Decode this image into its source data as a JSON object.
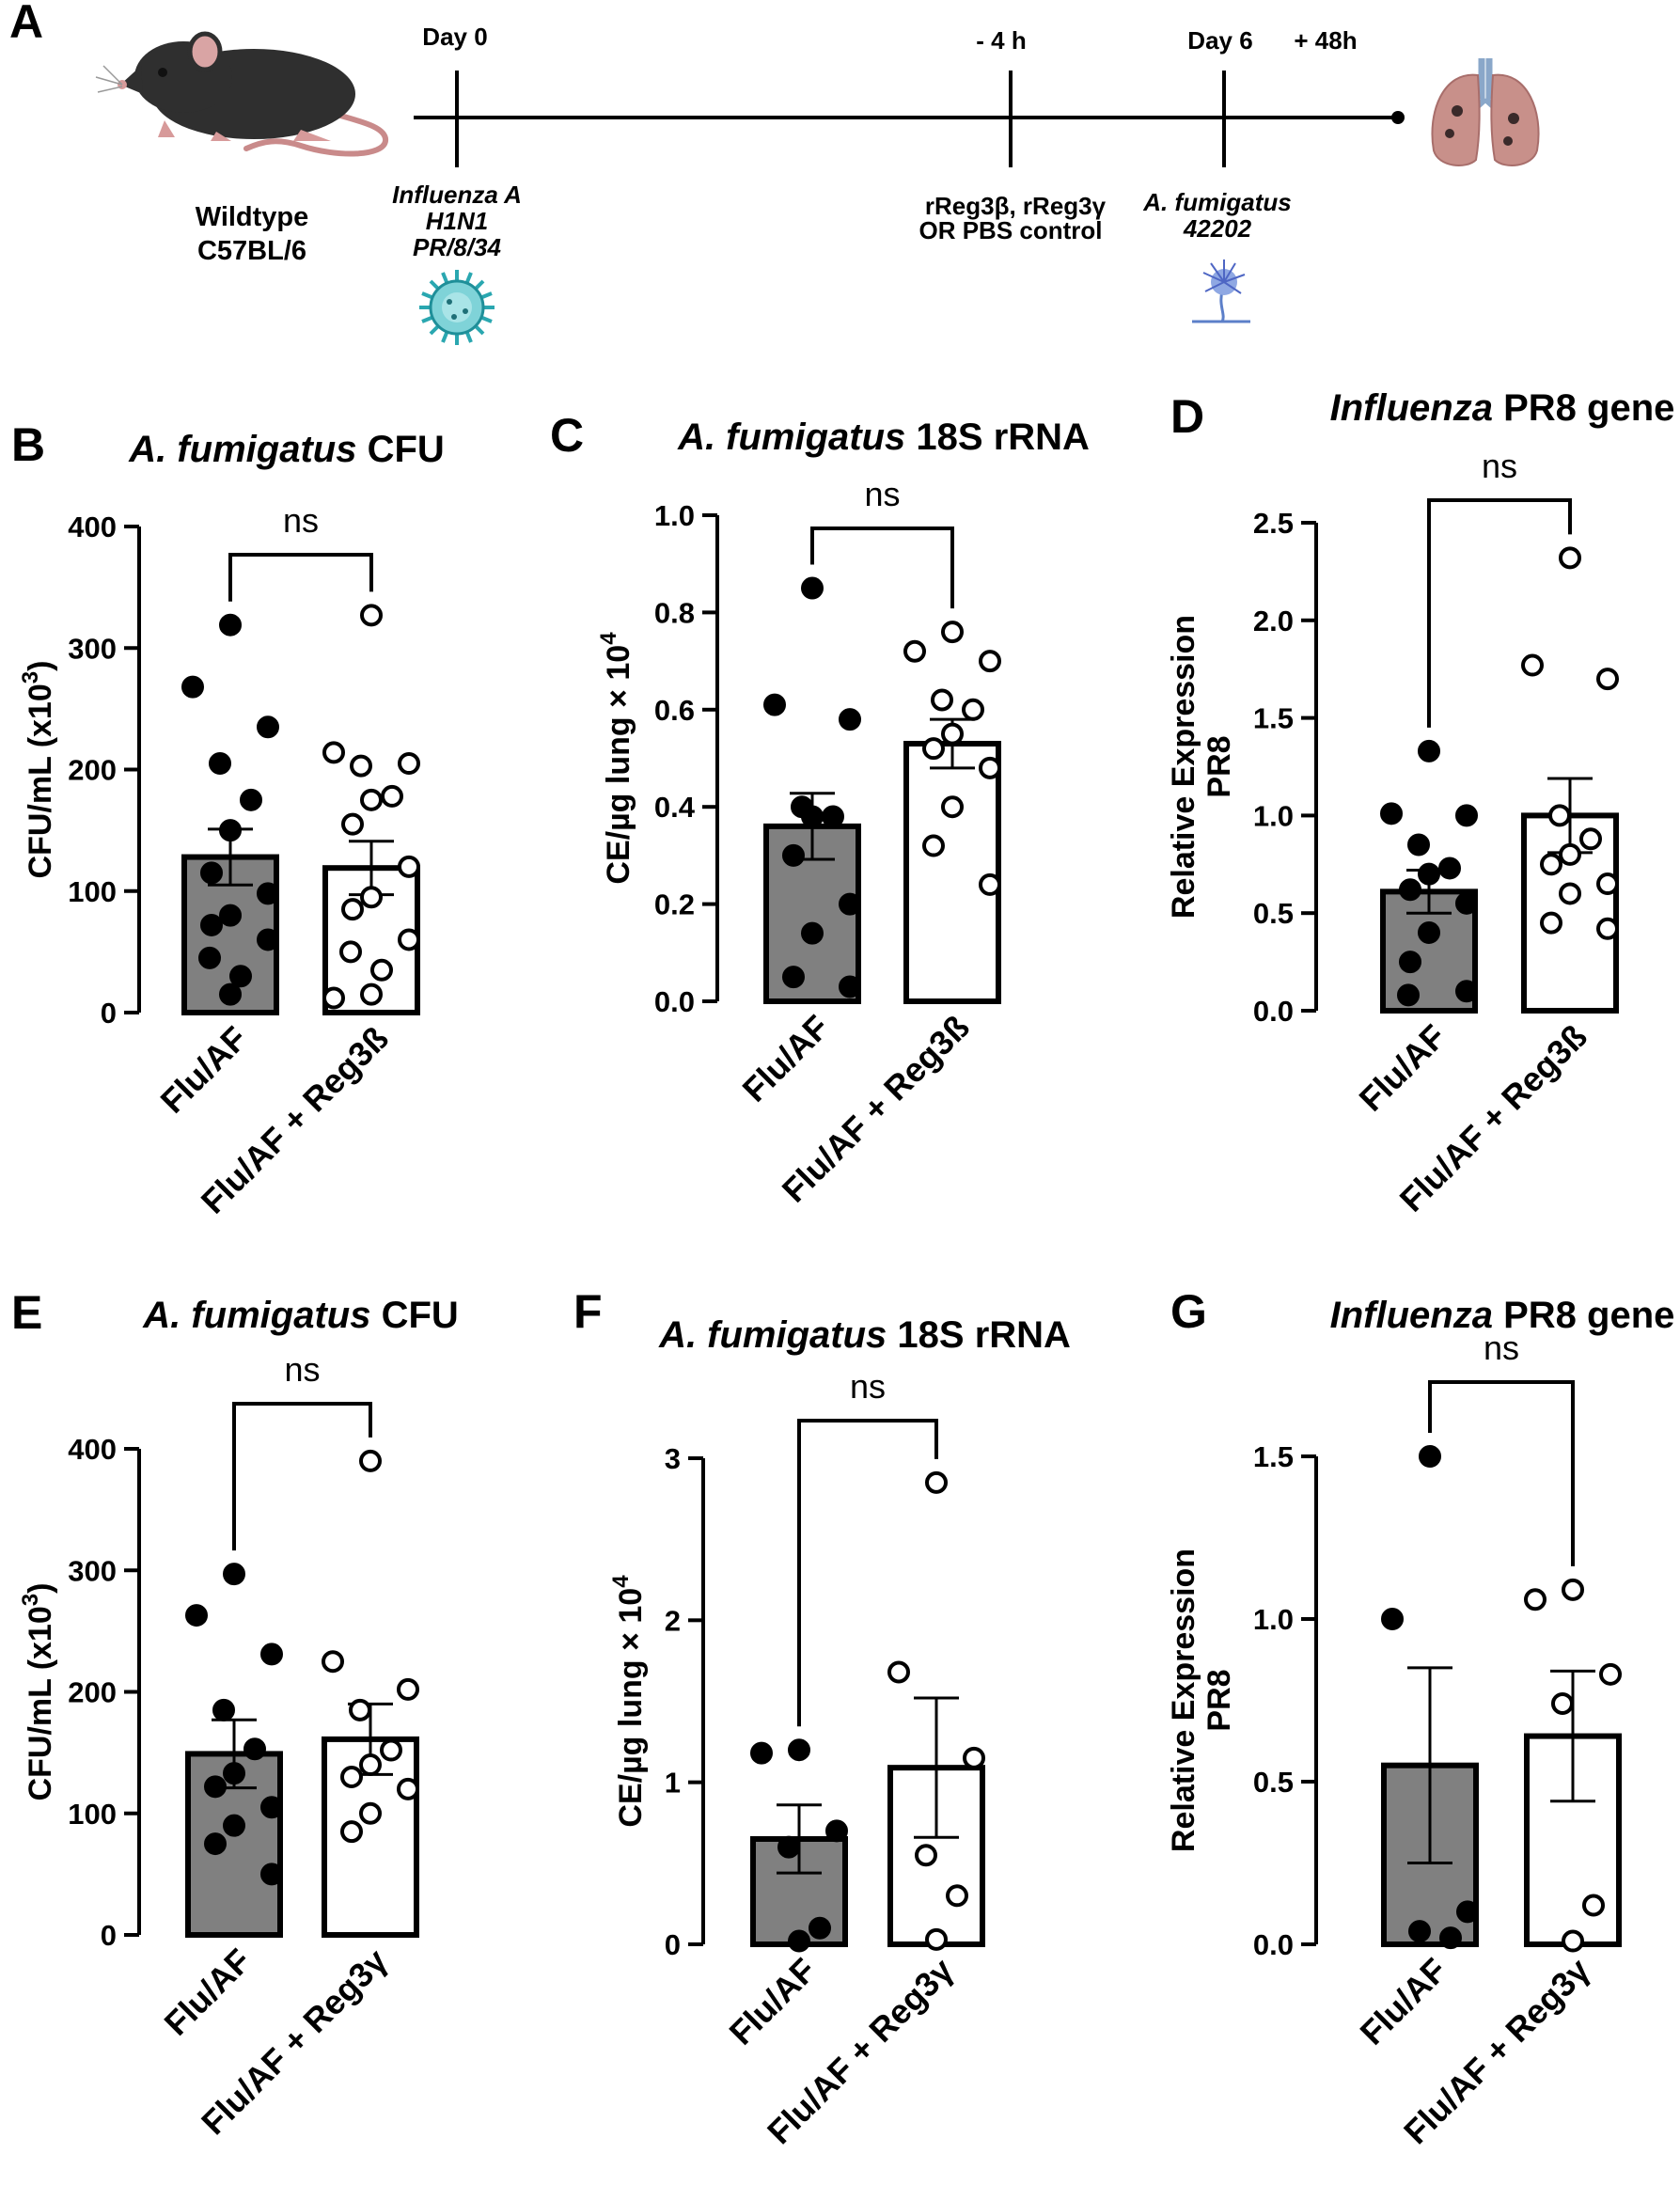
{
  "timeline": {
    "panel_label": "A",
    "strain_line1": "Wildtype",
    "strain_line2": "C57BL/6",
    "events": [
      {
        "label": "Day 0",
        "desc": [
          "Influenza A",
          "H1N1",
          "PR/8/34"
        ],
        "desc_style": "italic"
      },
      {
        "label": "- 4 h",
        "desc": [
          "rReg3β, rReg3γ",
          "OR PBS control"
        ],
        "desc_style": "normal"
      },
      {
        "label": "Day 6",
        "desc": [
          "A. fumigatus",
          "42202"
        ],
        "desc_style": "italic"
      },
      {
        "label": "+ 48h",
        "desc": [],
        "desc_style": "normal"
      }
    ]
  },
  "chart_data": [
    {
      "panel": "B",
      "type": "bar",
      "title": [
        {
          "t": "A. fumigatus",
          "i": true
        },
        {
          "t": " CFU",
          "i": false
        }
      ],
      "ylabel": [
        "CFU/mL (x10^3)"
      ],
      "sup": "3",
      "ylim": [
        0,
        400
      ],
      "ticks": [
        0,
        100,
        200,
        300,
        400
      ],
      "tick_labels": [
        "0",
        "100",
        "200",
        "300",
        "400"
      ],
      "categories": [
        "Flu/AF",
        "Flu/AF + Reg3ß"
      ],
      "means": [
        128,
        119
      ],
      "sem": [
        23,
        22
      ],
      "fills": [
        "#808080",
        "#ffffff"
      ],
      "points": [
        [
          319,
          268,
          235,
          205,
          175,
          150,
          115,
          98,
          80,
          72,
          60,
          45,
          30,
          15
        ],
        [
          327,
          214,
          205,
          203,
          178,
          175,
          155,
          120,
          95,
          85,
          60,
          50,
          35,
          15,
          12
        ]
      ],
      "significance": "ns"
    },
    {
      "panel": "C",
      "type": "bar",
      "title": [
        {
          "t": "A. fumigatus",
          "i": true
        },
        {
          "t": " 18S rRNA",
          "i": false
        }
      ],
      "ylabel": [
        "CE/µg lung × 10^4"
      ],
      "sup": "4",
      "ylim": [
        0,
        1.0
      ],
      "ticks": [
        0,
        0.2,
        0.4,
        0.6,
        0.8,
        1.0
      ],
      "tick_labels": [
        "0.0",
        "0.2",
        "0.4",
        "0.6",
        "0.8",
        "1.0"
      ],
      "categories": [
        "Flu/AF",
        "Flu/AF + Reg3ß"
      ],
      "means": [
        0.36,
        0.53
      ],
      "sem": [
        0.068,
        0.05
      ],
      "fills": [
        "#808080",
        "#ffffff"
      ],
      "points": [
        [
          0.85,
          0.61,
          0.58,
          0.4,
          0.38,
          0.38,
          0.3,
          0.2,
          0.14,
          0.05,
          0.03
        ],
        [
          0.76,
          0.72,
          0.7,
          0.62,
          0.6,
          0.55,
          0.52,
          0.48,
          0.4,
          0.32,
          0.24
        ]
      ],
      "significance": "ns"
    },
    {
      "panel": "D",
      "type": "bar",
      "title": [
        {
          "t": "Influenza",
          "i": true
        },
        {
          "t": " PR8 gene",
          "i": false
        }
      ],
      "ylabel": [
        "Relative Expression",
        "PR8"
      ],
      "sup": "",
      "ylim": [
        0,
        2.5
      ],
      "ticks": [
        0,
        0.5,
        1.0,
        1.5,
        2.0,
        2.5
      ],
      "tick_labels": [
        "0.0",
        "0.5",
        "1.0",
        "1.5",
        "2.0",
        "2.5"
      ],
      "categories": [
        "Flu/AF",
        "Flu/AF + Reg3ß"
      ],
      "means": [
        0.61,
        1.0
      ],
      "sem": [
        0.11,
        0.19
      ],
      "fills": [
        "#808080",
        "#ffffff"
      ],
      "points": [
        [
          1.33,
          1.01,
          1.0,
          0.85,
          0.73,
          0.7,
          0.62,
          0.55,
          0.4,
          0.25,
          0.1,
          0.08
        ],
        [
          2.32,
          1.77,
          1.7,
          1.0,
          0.88,
          0.8,
          0.75,
          0.65,
          0.6,
          0.45,
          0.42
        ]
      ],
      "significance": "ns"
    },
    {
      "panel": "E",
      "type": "bar",
      "title": [
        {
          "t": "A. fumigatus",
          "i": true
        },
        {
          "t": " CFU",
          "i": false
        }
      ],
      "ylabel": [
        "CFU/mL (x10^3)"
      ],
      "sup": "3",
      "ylim": [
        0,
        400
      ],
      "ticks": [
        0,
        100,
        200,
        300,
        400
      ],
      "tick_labels": [
        "0",
        "100",
        "200",
        "300",
        "400"
      ],
      "categories": [
        "Flu/AF",
        "Flu/AF + Reg3γ"
      ],
      "means": [
        149,
        161
      ],
      "sem": [
        28,
        29
      ],
      "fills": [
        "#808080",
        "#ffffff"
      ],
      "points": [
        [
          297,
          263,
          231,
          185,
          153,
          133,
          122,
          105,
          90,
          75,
          50
        ],
        [
          390,
          225,
          202,
          185,
          152,
          140,
          130,
          120,
          100,
          85
        ]
      ],
      "significance": "ns"
    },
    {
      "panel": "F",
      "type": "bar",
      "title": [
        {
          "t": "A. fumigatus",
          "i": true
        },
        {
          "t": " 18S rRNA",
          "i": false
        }
      ],
      "ylabel": [
        "CE/µg lung × 10^4"
      ],
      "sup": "4",
      "ylim": [
        0,
        3
      ],
      "ticks": [
        0,
        1,
        2,
        3
      ],
      "tick_labels": [
        "0",
        "1",
        "2",
        "3"
      ],
      "categories": [
        "Flu/AF",
        "Flu/AF + Reg3γ"
      ],
      "means": [
        0.65,
        1.09
      ],
      "sem": [
        0.21,
        0.43
      ],
      "fills": [
        "#808080",
        "#ffffff"
      ],
      "points": [
        [
          1.2,
          1.18,
          0.7,
          0.6,
          0.1,
          0.02
        ],
        [
          2.85,
          1.68,
          1.15,
          0.55,
          0.3,
          0.03
        ]
      ],
      "significance": "ns"
    },
    {
      "panel": "G",
      "type": "bar",
      "title": [
        {
          "t": "Influenza",
          "i": true
        },
        {
          "t": " PR8 gene",
          "i": false
        }
      ],
      "ylabel": [
        "Relative Expression",
        "PR8"
      ],
      "sup": "",
      "ylim": [
        0,
        1.5
      ],
      "ticks": [
        0,
        0.5,
        1.0,
        1.5
      ],
      "tick_labels": [
        "0.0",
        "0.5",
        "1.0",
        "1.5"
      ],
      "categories": [
        "Flu/AF",
        "Flu/AF + Reg3γ"
      ],
      "means": [
        0.55,
        0.64
      ],
      "sem": [
        0.3,
        0.2
      ],
      "fills": [
        "#808080",
        "#ffffff"
      ],
      "points": [
        [
          1.5,
          1.0,
          0.1,
          0.04,
          0.02
        ],
        [
          1.09,
          1.06,
          0.83,
          0.74,
          0.12,
          0.01
        ]
      ],
      "significance": "ns"
    }
  ]
}
